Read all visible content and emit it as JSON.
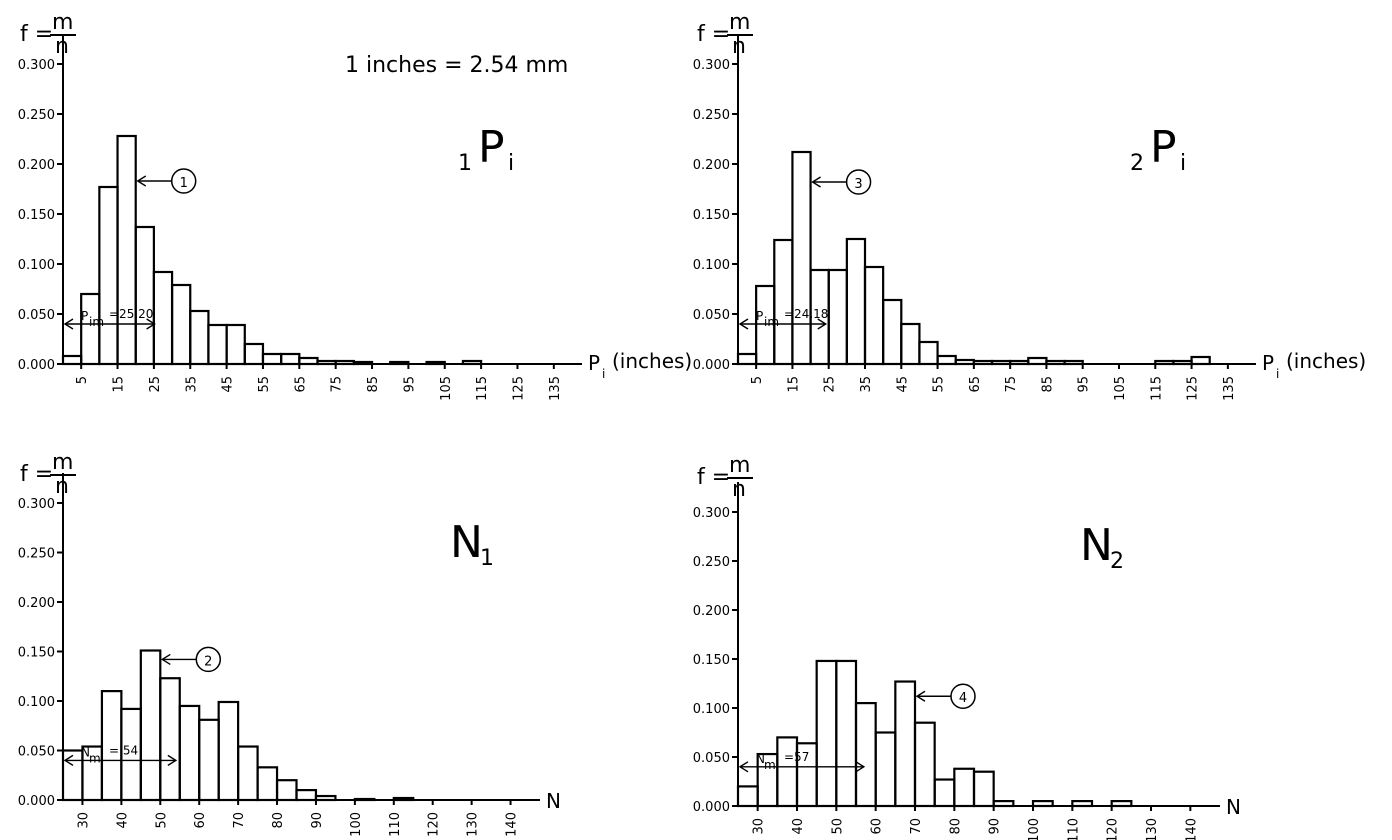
{
  "header_note": "1  inches = 2.54  mm",
  "chart_data": [
    {
      "type": "bar",
      "title": "P",
      "title_prefix": "1",
      "title_suffix": "i",
      "ylabel": {
        "lhs": "f =",
        "num": "m",
        "den": "n"
      },
      "xlabel": "(inches)",
      "xlabel_symbol": "P",
      "xlabel_sub": "i",
      "ylim": [
        0,
        0.3
      ],
      "xlim": [
        0,
        140
      ],
      "yticks": [
        "0.000",
        "0.050",
        "0.100",
        "0.150",
        "0.200",
        "0.250",
        "0.300"
      ],
      "xticks": [
        "5",
        "15",
        "25",
        "35",
        "45",
        "55",
        "65",
        "75",
        "85",
        "95",
        "105",
        "115",
        "125",
        "135"
      ],
      "bin_width": 5,
      "x_start": 0,
      "values": [
        0.008,
        0.07,
        0.177,
        0.228,
        0.137,
        0.092,
        0.079,
        0.053,
        0.039,
        0.039,
        0.02,
        0.01,
        0.01,
        0.006,
        0.003,
        0.003,
        0.002,
        0.0,
        0.002,
        0.0,
        0.002,
        0.0,
        0.003,
        0.0
      ],
      "mean_label": "P",
      "mean_sub": "im",
      "mean_value": "=25.20",
      "mean_x": 25.2,
      "marker": {
        "label": "1",
        "x": 20,
        "y": 0.183
      }
    },
    {
      "type": "bar",
      "title": "P",
      "title_prefix": "2",
      "title_suffix": "i",
      "ylabel": {
        "lhs": "f =",
        "num": "m",
        "den": "n"
      },
      "xlabel": "(inches)",
      "xlabel_symbol": "P",
      "xlabel_sub": "i",
      "ylim": [
        0,
        0.3
      ],
      "xlim": [
        0,
        140
      ],
      "yticks": [
        "0.000",
        "0.050",
        "0.100",
        "0.150",
        "0.200",
        "0.250",
        "0.300"
      ],
      "xticks": [
        "5",
        "15",
        "25",
        "35",
        "45",
        "55",
        "65",
        "75",
        "85",
        "95",
        "105",
        "115",
        "125",
        "135"
      ],
      "bin_width": 5,
      "x_start": 0,
      "values": [
        0.01,
        0.078,
        0.124,
        0.212,
        0.094,
        0.094,
        0.125,
        0.097,
        0.064,
        0.04,
        0.022,
        0.008,
        0.004,
        0.003,
        0.003,
        0.003,
        0.006,
        0.003,
        0.003,
        0.0,
        0.0,
        0.0,
        0.0,
        0.003,
        0.003,
        0.007
      ],
      "mean_label": "P",
      "mean_sub": "im",
      "mean_value": "=24.18",
      "mean_x": 24.18,
      "marker": {
        "label": "3",
        "x": 20,
        "y": 0.182
      }
    },
    {
      "type": "bar",
      "title": "N",
      "title_prefix": "",
      "title_suffix": "1",
      "ylabel": {
        "lhs": "f =",
        "num": "m",
        "den": "n"
      },
      "xlabel": "N",
      "xlabel_symbol": "",
      "xlabel_sub": "",
      "ylim": [
        0,
        0.3
      ],
      "xlim": [
        25,
        145
      ],
      "yticks": [
        "0.000",
        "0.050",
        "0.100",
        "0.150",
        "0.200",
        "0.250",
        "0.300"
      ],
      "xticks": [
        "30",
        "40",
        "50",
        "60",
        "70",
        "80",
        "90",
        "100",
        "110",
        "120",
        "130",
        "140"
      ],
      "bin_width": 5,
      "x_start": 25,
      "values": [
        0.05,
        0.054,
        0.11,
        0.092,
        0.151,
        0.123,
        0.095,
        0.081,
        0.099,
        0.054,
        0.033,
        0.02,
        0.01,
        0.004,
        0.0,
        0.001,
        0.0,
        0.002
      ],
      "mean_label": "N",
      "mean_sub": "m",
      "mean_value": "= 54",
      "mean_x": 54,
      "marker": {
        "label": "2",
        "x": 50,
        "y": 0.142
      }
    },
    {
      "type": "bar",
      "title": "N",
      "title_prefix": "",
      "title_suffix": "2",
      "ylabel": {
        "lhs": "f =",
        "num": "m",
        "den": "n"
      },
      "xlabel": "N",
      "xlabel_symbol": "",
      "xlabel_sub": "",
      "ylim": [
        0,
        0.3
      ],
      "xlim": [
        25,
        145
      ],
      "yticks": [
        "0.000",
        "0.050",
        "0.100",
        "0.150",
        "0.200",
        "0.250",
        "0.300"
      ],
      "xticks": [
        "30",
        "40",
        "50",
        "60",
        "70",
        "80",
        "90",
        "100",
        "110",
        "120",
        "130",
        "140"
      ],
      "bin_width": 5,
      "x_start": 25,
      "values": [
        0.02,
        0.053,
        0.07,
        0.064,
        0.148,
        0.148,
        0.105,
        0.075,
        0.127,
        0.085,
        0.027,
        0.038,
        0.035,
        0.005,
        0.0,
        0.005,
        0.0,
        0.005,
        0.0,
        0.005,
        0.0,
        0.0
      ],
      "mean_label": "N",
      "mean_sub": "m",
      "mean_value": "=57",
      "mean_x": 57,
      "marker": {
        "label": "4",
        "x": 70,
        "y": 0.112
      }
    }
  ]
}
